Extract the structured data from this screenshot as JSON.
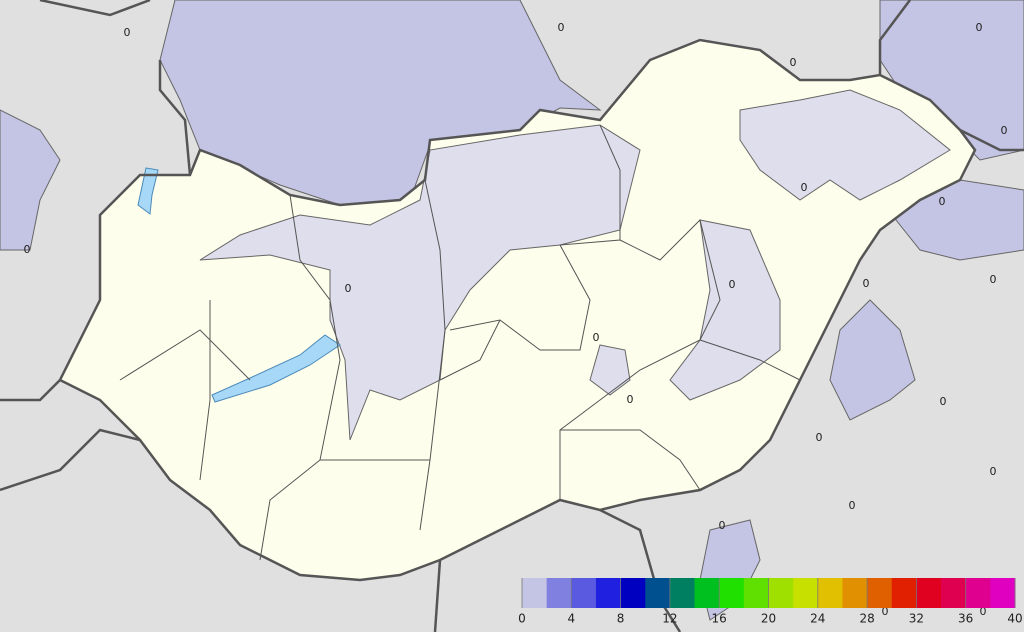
{
  "map": {
    "contour_labels": [
      "0",
      "0",
      "0",
      "0",
      "0",
      "0",
      "0",
      "0",
      "0",
      "0",
      "0",
      "0",
      "0",
      "0",
      "0",
      "0",
      "0",
      "0",
      "0",
      "0",
      "0"
    ],
    "legend": {
      "range": [
        0,
        40
      ],
      "ticks": [
        0,
        4,
        8,
        12,
        16,
        20,
        24,
        28,
        32,
        36,
        40
      ],
      "colors": [
        "#c4c4e4",
        "#8080e0",
        "#5a5ae0",
        "#2020e0",
        "#0000c0",
        "#005090",
        "#008060",
        "#00c020",
        "#20e000",
        "#60e000",
        "#a0e000",
        "#c8e000",
        "#e0c000",
        "#e09000",
        "#e06000",
        "#e02000",
        "#e00020",
        "#e00050",
        "#e00090",
        "#e000c0"
      ]
    }
  }
}
